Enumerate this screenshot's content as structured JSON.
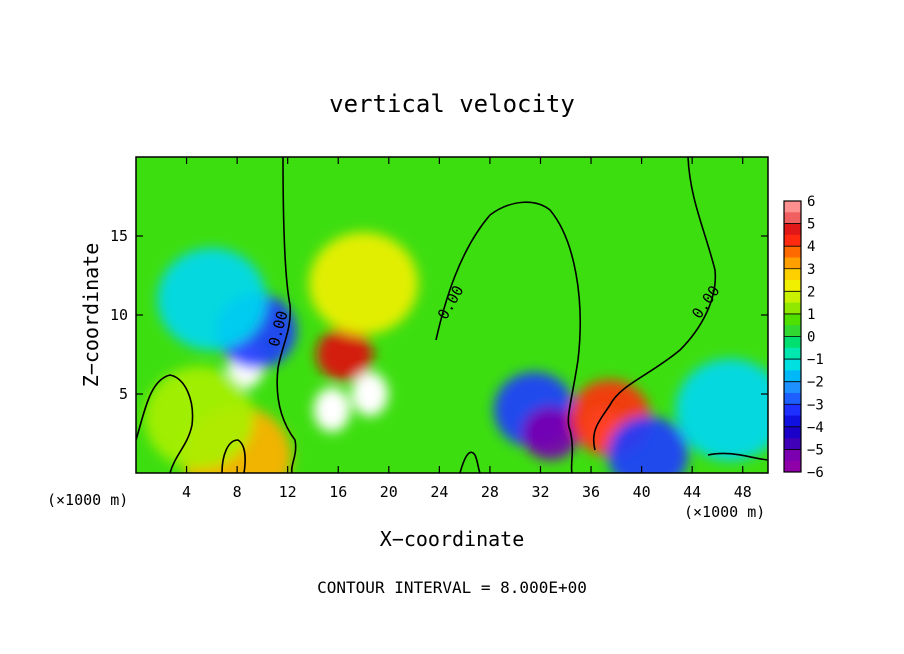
{
  "chart_data": {
    "type": "heatmap",
    "title": "vertical velocity",
    "xlabel": "X−coordinate",
    "ylabel": "Z−coordinate",
    "x_unit_left": "(×1000 m)",
    "x_unit_right": "(×1000 m)",
    "footer": "CONTOUR INTERVAL = 8.000E+00",
    "xlim": [
      0,
      50
    ],
    "ylim": [
      0,
      20
    ],
    "x_ticks": [
      "4",
      "8",
      "12",
      "16",
      "20",
      "24",
      "28",
      "32",
      "36",
      "40",
      "44",
      "48"
    ],
    "y_ticks": [
      "5",
      "10",
      "15"
    ],
    "contour_labels": [
      "0.00",
      "0.00",
      "0.00"
    ],
    "colorbar": {
      "ticks": [
        "6",
        "5",
        "4",
        "3",
        "2",
        "1",
        "0",
        "−1",
        "−2",
        "−3",
        "−4",
        "−5",
        "−6"
      ],
      "min": -6,
      "max": 6
    },
    "features": [
      {
        "x": 8.7,
        "z": 6.8,
        "value": -6.5
      },
      {
        "x": 9.5,
        "z": 9.0,
        "value": -3.5
      },
      {
        "x": 6.0,
        "z": 11.0,
        "value": -2
      },
      {
        "x": 16.5,
        "z": 7.5,
        "value": 5.5
      },
      {
        "x": 18.5,
        "z": 5.0,
        "value": 6.5
      },
      {
        "x": 15.5,
        "z": 4.0,
        "value": 6.5
      },
      {
        "x": 18.0,
        "z": 12.0,
        "value": 2.5
      },
      {
        "x": 31.5,
        "z": 4.0,
        "value": -4
      },
      {
        "x": 32.8,
        "z": 2.5,
        "value": -5.5
      },
      {
        "x": 37.0,
        "z": 2.7,
        "value": 6.5
      },
      {
        "x": 37.5,
        "z": 3.5,
        "value": 4
      },
      {
        "x": 8.0,
        "z": 1.0,
        "value": 3
      },
      {
        "x": 5.0,
        "z": 3.5,
        "value": 1.3
      },
      {
        "x": 40.5,
        "z": 1.2,
        "value": -4
      },
      {
        "x": 47.0,
        "z": 4.0,
        "value": -1.8
      }
    ]
  }
}
